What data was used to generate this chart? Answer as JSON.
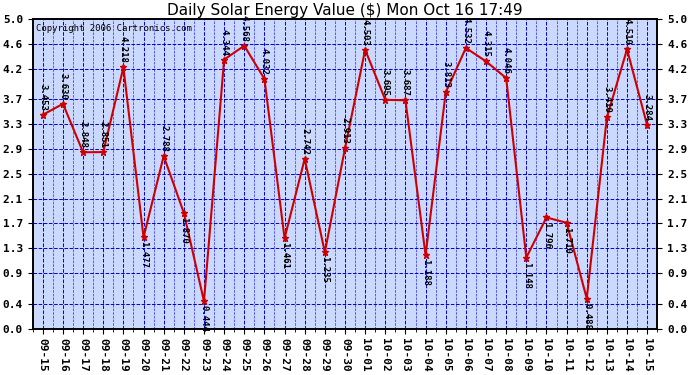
{
  "title": "Daily Solar Energy Value ($) Mon Oct 16 17:49",
  "copyright": "Copyright 2006 Cartronics.com",
  "dates": [
    "09-15",
    "09-16",
    "09-17",
    "09-18",
    "09-19",
    "09-20",
    "09-21",
    "09-22",
    "09-23",
    "09-24",
    "09-25",
    "09-26",
    "09-27",
    "09-28",
    "09-29",
    "09-30",
    "10-01",
    "10-02",
    "10-03",
    "10-04",
    "10-05",
    "10-06",
    "10-07",
    "10-08",
    "10-09",
    "10-10",
    "10-11",
    "10-12",
    "10-13",
    "10-14",
    "10-15"
  ],
  "values": [
    3.453,
    3.63,
    2.848,
    2.851,
    4.218,
    1.477,
    2.788,
    1.87,
    0.444,
    4.344,
    4.568,
    4.032,
    1.461,
    2.742,
    1.235,
    2.913,
    4.503,
    3.695,
    3.687,
    1.188,
    3.813,
    4.532,
    4.315,
    4.046,
    1.148,
    1.796,
    1.71,
    0.488,
    3.41,
    4.51,
    3.284
  ],
  "line_color": "#cc0000",
  "marker_color": "#cc0000",
  "bg_color": "#ffffff",
  "plot_bg_color": "#ccd9ff",
  "grid_color": "#0000cc",
  "title_fontsize": 11,
  "copyright_fontsize": 6.5,
  "label_fontsize": 6.5,
  "tick_fontsize": 8,
  "ylim": [
    0.0,
    5.0
  ],
  "yticks": [
    0.0,
    0.4,
    0.9,
    1.3,
    1.7,
    2.1,
    2.5,
    2.9,
    3.3,
    3.7,
    4.2,
    4.6,
    5.0
  ]
}
